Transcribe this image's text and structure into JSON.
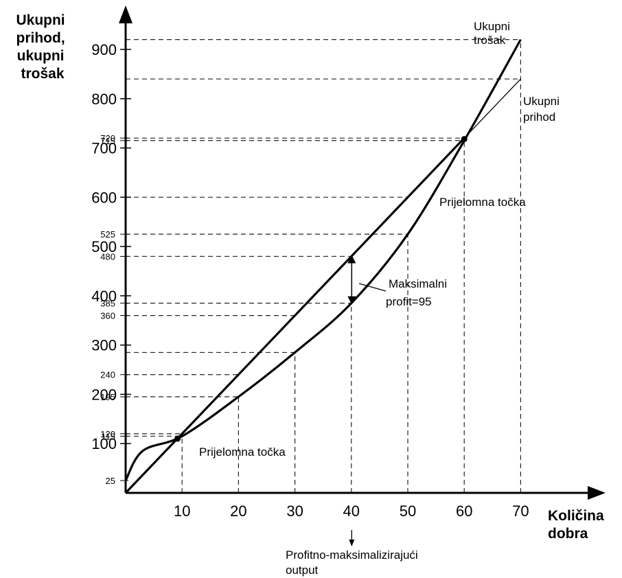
{
  "chart_data": {
    "type": "line",
    "ylabel_lines": [
      "Ukupni",
      "prihod,",
      "ukupni",
      "trošak"
    ],
    "xlabel_lines": [
      "Količina",
      "dobra"
    ],
    "xlim": [
      0,
      70
    ],
    "ylim": [
      0,
      900
    ],
    "x_ticks": [
      10,
      20,
      30,
      40,
      50,
      60,
      70
    ],
    "y_ticks_major": [
      100,
      200,
      300,
      400,
      500,
      600,
      700,
      800,
      900
    ],
    "y_ticks_minor": [
      25,
      115,
      120,
      195,
      240,
      360,
      385,
      480,
      525,
      715,
      720
    ],
    "series": [
      {
        "name": "Ukupni prihod",
        "x": [
          0,
          10,
          20,
          30,
          40,
          50,
          60,
          70
        ],
        "y": [
          0,
          120,
          240,
          360,
          480,
          600,
          720,
          840
        ]
      },
      {
        "name": "Ukupni trošak",
        "x": [
          0,
          3,
          10,
          20,
          30,
          40,
          50,
          60,
          70
        ],
        "y": [
          25,
          85,
          115,
          195,
          285,
          385,
          525,
          715,
          920
        ]
      }
    ],
    "annotations": {
      "break_even_label": "Prijelomna točka",
      "max_profit_label_lines": [
        "Maksimalni",
        "profit=95"
      ],
      "output_label_lines": [
        "Profitno-maksimalizirajući",
        "output"
      ],
      "total_cost_label_lines": [
        "Ukupni",
        "trošak"
      ],
      "total_revenue_label_lines": [
        "Ukupni",
        "prihod"
      ]
    },
    "grid": false,
    "legend": "none"
  }
}
